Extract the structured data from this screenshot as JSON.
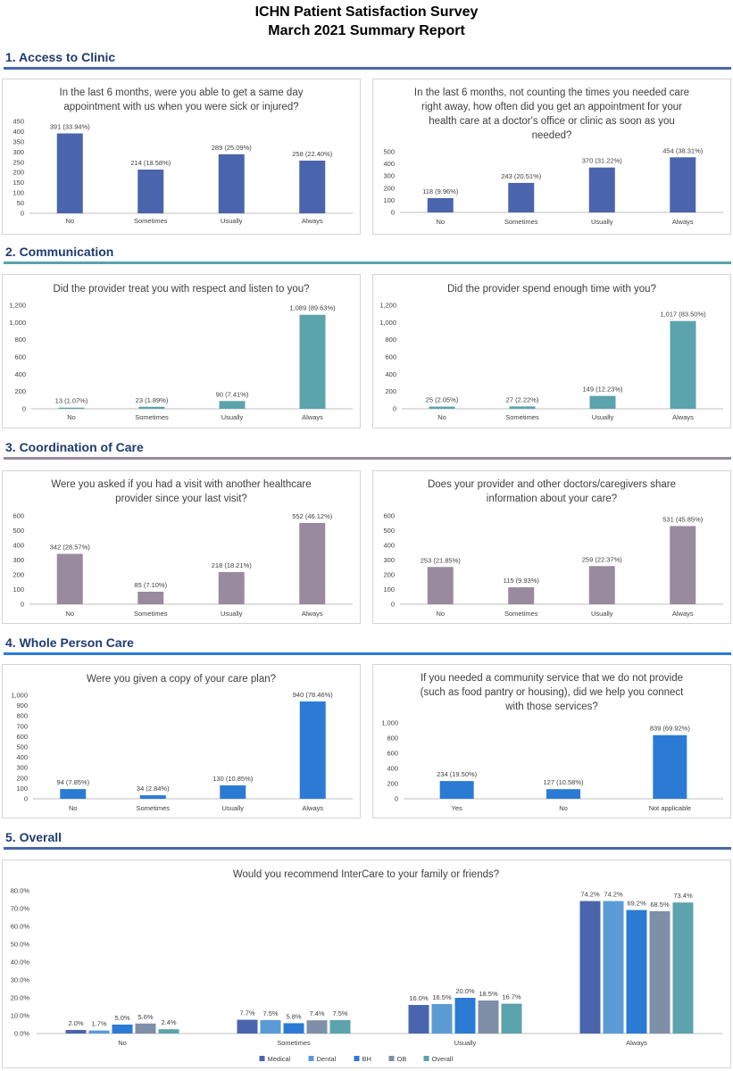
{
  "report": {
    "title_line1": "ICHN Patient Satisfaction Survey",
    "title_line2": "March 2021 Summary Report"
  },
  "sections": [
    {
      "title": "1. Access to Clinic",
      "color": "#4a65ad"
    },
    {
      "title": "2. Communication",
      "color": "#5ba3ad"
    },
    {
      "title": "3. Coordination of Care",
      "color": "#9a8a9e"
    },
    {
      "title": "4. Whole Person Care",
      "color": "#2b7bd5"
    },
    {
      "title": "5. Overall",
      "color": "#4a65ad"
    }
  ],
  "chart_data": [
    {
      "type": "bar",
      "title_lines": [
        "In the last 6 months, were you able to get a same day",
        "appointment with us when you were sick or injured?"
      ],
      "categories": [
        "No",
        "Sometimes",
        "Usually",
        "Always"
      ],
      "values": [
        391,
        214,
        289,
        258
      ],
      "data_labels": [
        "391 (33.94%)",
        "214 (18.58%)",
        "289 (25.09%)",
        "258 (22.40%)"
      ],
      "yticks": [
        "0",
        "50",
        "100",
        "150",
        "200",
        "250",
        "300",
        "350",
        "400",
        "450"
      ],
      "ylim": [
        0,
        450
      ],
      "color": "#4a65ad"
    },
    {
      "type": "bar",
      "title_lines": [
        "In the last 6 months, not counting the times you needed care",
        "right away, how often did you get an appointment for your",
        "health care at a doctor's office or clinic as soon as you",
        "needed?"
      ],
      "categories": [
        "No",
        "Sometimes",
        "Usually",
        "Always"
      ],
      "values": [
        118,
        243,
        370,
        454
      ],
      "data_labels": [
        "118 (9.96%)",
        "243 (20.51%)",
        "370 (31.22%)",
        "454 (38.31%)"
      ],
      "yticks": [
        "0",
        "100",
        "200",
        "300",
        "400",
        "500"
      ],
      "ylim": [
        0,
        500
      ],
      "color": "#4a65ad"
    },
    {
      "type": "bar",
      "title_lines": [
        "Did the provider treat you with respect and listen to you?"
      ],
      "categories": [
        "No",
        "Sometimes",
        "Usually",
        "Always"
      ],
      "values": [
        13,
        23,
        90,
        1089
      ],
      "data_labels": [
        "13 (1.07%)",
        "23 (1.89%)",
        "90 (7.41%)",
        "1,089 (89.63%)"
      ],
      "yticks": [
        "0",
        "200",
        "400",
        "600",
        "800",
        "1,000",
        "1,200"
      ],
      "ylim": [
        0,
        1200
      ],
      "color": "#5ba3ad"
    },
    {
      "type": "bar",
      "title_lines": [
        "Did the provider spend enough time with you?"
      ],
      "categories": [
        "No",
        "Sometimes",
        "Usually",
        "Always"
      ],
      "values": [
        25,
        27,
        149,
        1017
      ],
      "data_labels": [
        "25 (2.05%)",
        "27 (2.22%)",
        "149 (12.23%)",
        "1,017 (83.50%)"
      ],
      "yticks": [
        "0",
        "200",
        "400",
        "600",
        "800",
        "1,000",
        "1,200"
      ],
      "ylim": [
        0,
        1200
      ],
      "color": "#5ba3ad"
    },
    {
      "type": "bar",
      "title_lines": [
        "Were you asked if you had a visit with another healthcare",
        "provider since your last visit?"
      ],
      "categories": [
        "No",
        "Sometimes",
        "Usually",
        "Always"
      ],
      "values": [
        342,
        85,
        218,
        552
      ],
      "data_labels": [
        "342 (28.57%)",
        "85 (7.10%)",
        "218 (18.21%)",
        "552 (46.12%)"
      ],
      "yticks": [
        "0",
        "100",
        "200",
        "300",
        "400",
        "500",
        "600"
      ],
      "ylim": [
        0,
        600
      ],
      "color": "#9a8a9e"
    },
    {
      "type": "bar",
      "title_lines": [
        "Does your provider and other doctors/caregivers share",
        "information about your care?"
      ],
      "categories": [
        "No",
        "Sometimes",
        "Usually",
        "Always"
      ],
      "values": [
        253,
        115,
        259,
        531
      ],
      "data_labels": [
        "253 (21.85%)",
        "115 (9.93%)",
        "259 (22.37%)",
        "531 (45.85%)"
      ],
      "yticks": [
        "0",
        "100",
        "200",
        "300",
        "400",
        "500",
        "600"
      ],
      "ylim": [
        0,
        600
      ],
      "color": "#9a8a9e"
    },
    {
      "type": "bar",
      "title_lines": [
        "Were you given a copy of your care plan?"
      ],
      "categories": [
        "No",
        "Sometimes",
        "Usually",
        "Always"
      ],
      "values": [
        94,
        34,
        130,
        940
      ],
      "data_labels": [
        "94 (7.85%)",
        "34 (2.84%)",
        "130 (10.85%)",
        "940 (78.46%)"
      ],
      "yticks": [
        "0",
        "100",
        "200",
        "300",
        "400",
        "500",
        "600",
        "700",
        "800",
        "900",
        "1,000"
      ],
      "ylim": [
        0,
        1000
      ],
      "color": "#2b7bd5"
    },
    {
      "type": "bar",
      "title_lines": [
        "If you needed a community service that we do not provide",
        "(such as food pantry or housing), did we help you connect",
        "with those services?"
      ],
      "categories": [
        "Yes",
        "No",
        "Not applicable"
      ],
      "values": [
        234,
        127,
        839
      ],
      "data_labels": [
        "234 (19.50%)",
        "127 (10.58%)",
        "839 (69.92%)"
      ],
      "yticks": [
        "0",
        "200",
        "400",
        "600",
        "800",
        "1,000"
      ],
      "ylim": [
        0,
        1000
      ],
      "color": "#2b7bd5"
    },
    {
      "type": "bar",
      "title_lines": [
        "Would you recommend InterCare to your family or friends?"
      ],
      "categories": [
        "No",
        "Sometimes",
        "Usually",
        "Always"
      ],
      "series": [
        {
          "name": "Medical",
          "color": "#4a65ad",
          "values": [
            2.0,
            7.7,
            16.0,
            74.2
          ],
          "labels": [
            "2.0%",
            "7.7%",
            "16.0%",
            "74.2%"
          ]
        },
        {
          "name": "Dental",
          "color": "#5b9bd5",
          "values": [
            1.7,
            7.5,
            16.5,
            74.2
          ],
          "labels": [
            "1.7%",
            "7.5%",
            "16.5%",
            "74.2%"
          ]
        },
        {
          "name": "BH",
          "color": "#2b7bd5",
          "values": [
            5.0,
            5.8,
            20.0,
            69.2
          ],
          "labels": [
            "5.0%",
            "5.8%",
            "20.0%",
            "69.2%"
          ]
        },
        {
          "name": "OB",
          "color": "#7f8fa8",
          "values": [
            5.6,
            7.4,
            18.5,
            68.5
          ],
          "labels": [
            "5.6%",
            "7.4%",
            "18.5%",
            "68.5%"
          ]
        },
        {
          "name": "Overall",
          "color": "#5ba3ad",
          "values": [
            2.4,
            7.5,
            16.7,
            73.4
          ],
          "labels": [
            "2.4%",
            "7.5%",
            "16.7%",
            "73.4%"
          ]
        }
      ],
      "yticks": [
        "0.0%",
        "10.0%",
        "20.0%",
        "30.0%",
        "40.0%",
        "50.0%",
        "60.0%",
        "70.0%",
        "80.0%"
      ],
      "ylim": [
        0,
        80
      ],
      "legend": "bottom"
    }
  ]
}
